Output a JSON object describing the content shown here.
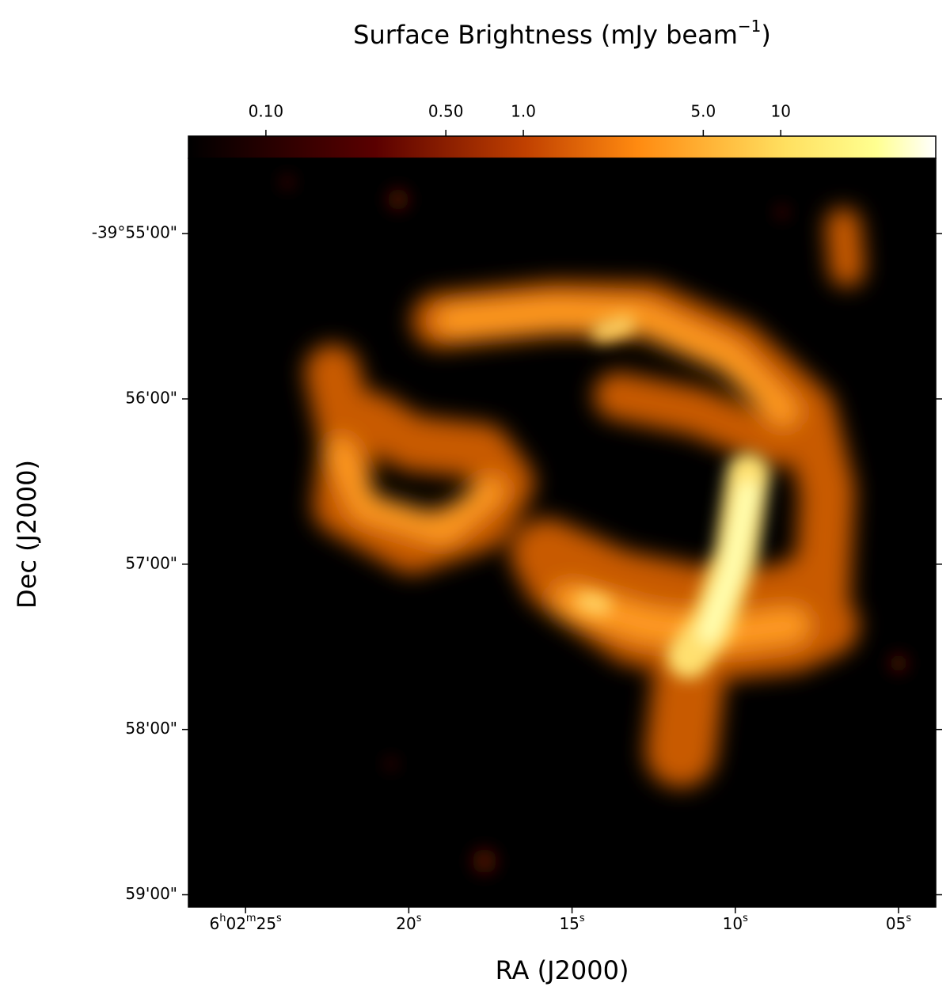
{
  "chart_data": {
    "type": "image",
    "colorbar": {
      "label": "Surface Brightness (mJy beam",
      "label_superscript": "−1",
      "label_close": ")",
      "scale": "log",
      "clim": [
        0.05,
        40
      ],
      "ticks": [
        {
          "value": 0.1,
          "label": "0.10"
        },
        {
          "value": 0.5,
          "label": "0.50"
        },
        {
          "value": 1,
          "label": "1.0"
        },
        {
          "value": 5,
          "label": "5.0"
        },
        10
      ]
    },
    "xlabel": "RA (J2000)",
    "ylabel": "Dec (J2000)",
    "xlim": [
      26.75,
      3.86
    ],
    "xticks": [
      {
        "value": 25,
        "label": "6h02m25s"
      },
      {
        "value": 20,
        "label": "20s"
      },
      {
        "value": 15,
        "label": "15s"
      },
      {
        "value": 10,
        "label": "10s"
      },
      {
        "value": 5,
        "label": "05s"
      }
    ],
    "ylim": [
      -39.98457,
      -39.90907
    ],
    "yticks": [
      {
        "value": -39.916667,
        "label": "-39°55'00\""
      },
      {
        "value": -39.933333,
        "label": "56'00\""
      },
      {
        "value": -39.95,
        "label": "57'00\""
      },
      {
        "value": -39.966667,
        "label": "58'00\""
      },
      {
        "value": -39.983333,
        "label": "59'00\""
      }
    ]
  }
}
